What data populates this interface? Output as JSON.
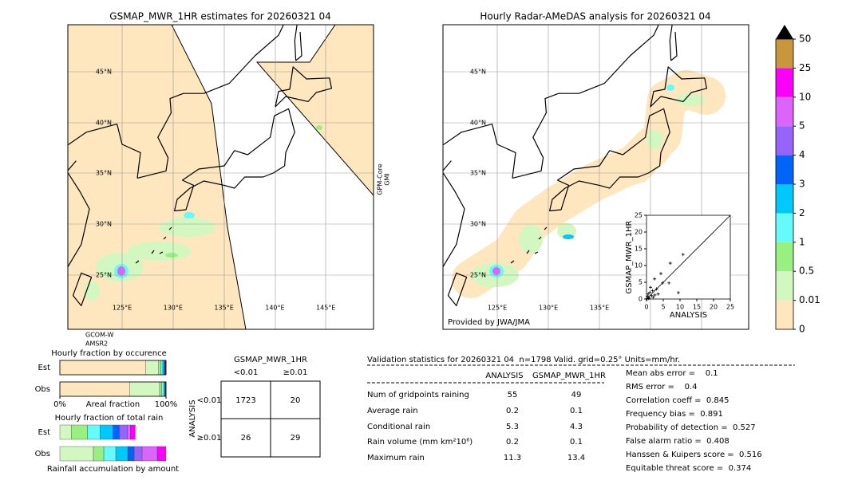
{
  "left_map": {
    "title": "GSMAP_MWR_1HR estimates for 20260321 04",
    "lat_labels": [
      "45°N",
      "40°N",
      "35°N",
      "30°N",
      "25°N"
    ],
    "lon_labels": [
      "125°E",
      "130°E",
      "135°E",
      "140°E",
      "145°E"
    ],
    "side_label": [
      "GPM-Core",
      "GMI"
    ],
    "bottom_label": [
      "GCOM-W",
      "AMSR2"
    ]
  },
  "right_map": {
    "title": "Hourly Radar-AMeDAS analysis for 20260321 04",
    "lat_labels": [
      "45°N",
      "40°N",
      "35°N",
      "30°N",
      "25°N"
    ],
    "lon_labels": [
      "125°E",
      "130°E",
      "135°E"
    ],
    "credit": "Provided by JWA/JMA"
  },
  "chart_data": [
    {
      "type": "scatter",
      "xlabel": "ANALYSIS",
      "ylabel": "GSMAP_MWR_1HR",
      "x": [
        10.9,
        7.1,
        4.3,
        4.8,
        6.7,
        2.4,
        3,
        9.5,
        1,
        1.5,
        2,
        0.5,
        0.8,
        1.2,
        2.5,
        0.3,
        1.8,
        0.6,
        3.5,
        0.2
      ],
      "y": [
        13.3,
        10.7,
        7.6,
        4.8,
        4.8,
        6,
        3,
        1.9,
        2,
        1,
        0.5,
        1.5,
        0.3,
        3.5,
        1.2,
        0.8,
        2.5,
        0.2,
        1.5,
        0.1
      ],
      "xlim": [
        0,
        25
      ],
      "ylim": [
        0,
        25
      ],
      "xticks": [
        0,
        5,
        10,
        15,
        20,
        25
      ],
      "yticks": [
        0,
        5,
        10,
        15,
        20,
        25
      ],
      "color": "#000000"
    },
    {
      "type": "colorbar",
      "levels": [
        0,
        0.01,
        0.5,
        1,
        2,
        3,
        4,
        5,
        10,
        25,
        50
      ],
      "colors": [
        "#fee6bf",
        "#d2f7c0",
        "#98f080",
        "#66fbfb",
        "#00c8fb",
        "#0064fb",
        "#9664fb",
        "#dc64fb",
        "#fa00fa",
        "#c8963c"
      ],
      "extend_color": "#000000"
    },
    {
      "type": "stacked-bar",
      "title": "Hourly fraction by occurence",
      "xlabel": "Areal fraction",
      "categories": [
        "Est",
        "Obs"
      ],
      "series": [
        {
          "color": "#fee6bf",
          "values": [
            81,
            66
          ]
        },
        {
          "color": "#d2f7c0",
          "values": [
            12,
            28
          ]
        },
        {
          "color": "#98f080",
          "values": [
            2,
            2
          ]
        },
        {
          "color": "#66fbfb",
          "values": [
            2,
            2
          ]
        },
        {
          "color": "#00c8fb",
          "values": [
            1.5,
            1
          ]
        },
        {
          "color": "#333366",
          "values": [
            1.5,
            1
          ]
        }
      ],
      "xlim": [
        0,
        100
      ],
      "xticks": [
        {
          "value": 0,
          "label": "0%"
        },
        {
          "value": 100,
          "label": "100%"
        }
      ]
    },
    {
      "type": "stacked-bar",
      "title": "Hourly fraction of total rain",
      "xlabel": "Rainfall accumulation by amount",
      "categories": [
        "Est",
        "Obs"
      ],
      "series": [
        {
          "color": "#d2f7c0",
          "values": [
            11,
            31.6
          ]
        },
        {
          "color": "#98f080",
          "values": [
            15,
            9.8
          ]
        },
        {
          "color": "#66fbfb",
          "values": [
            12,
            11.3
          ]
        },
        {
          "color": "#00c8fb",
          "values": [
            12,
            11.3
          ]
        },
        {
          "color": "#0064fb",
          "values": [
            6,
            6
          ]
        },
        {
          "color": "#9664fb",
          "values": [
            7.5,
            7.5
          ]
        },
        {
          "color": "#dc64fb",
          "values": [
            3,
            14.3
          ]
        },
        {
          "color": "#fa00fa",
          "values": [
            4.5,
            8.2
          ]
        }
      ],
      "xlim": [
        0,
        100
      ]
    }
  ],
  "contingency": {
    "title": "GSMAP_MWR_1HR",
    "col_labels": [
      "<0.01",
      "≥0.01"
    ],
    "row_title": "ANALYSIS",
    "row_labels": [
      "<0.01",
      "≥0.01"
    ],
    "cells": [
      [
        1723,
        20
      ],
      [
        26,
        29
      ]
    ]
  },
  "validation": {
    "header": "Validation statistics for 20260321 04  n=1798 Valid. grid=0.25° Units=mm/hr.",
    "columns": [
      "ANALYSIS",
      "GSMAP_MWR_1HR"
    ],
    "rows": [
      {
        "label": "Num of gridpoints raining",
        "analysis": 55,
        "gsmap": 49
      },
      {
        "label": "Average rain",
        "analysis": 0.2,
        "gsmap": 0.1
      },
      {
        "label": "Conditional rain",
        "analysis": 5.3,
        "gsmap": 4.3
      },
      {
        "label": "Rain volume (mm km²10⁶)",
        "analysis": 0.2,
        "gsmap": 0.1
      },
      {
        "label": "Maximum rain",
        "analysis": 11.3,
        "gsmap": 13.4
      }
    ],
    "scores": [
      "Mean abs error =    0.1",
      "RMS error =    0.4",
      "Correlation coeff =  0.845",
      "Frequency bias =  0.891",
      "Probability of detection =  0.527",
      "False alarm ratio =  0.408",
      "Hanssen & Kuipers score =  0.516",
      "Equitable threat score =  0.374"
    ]
  }
}
